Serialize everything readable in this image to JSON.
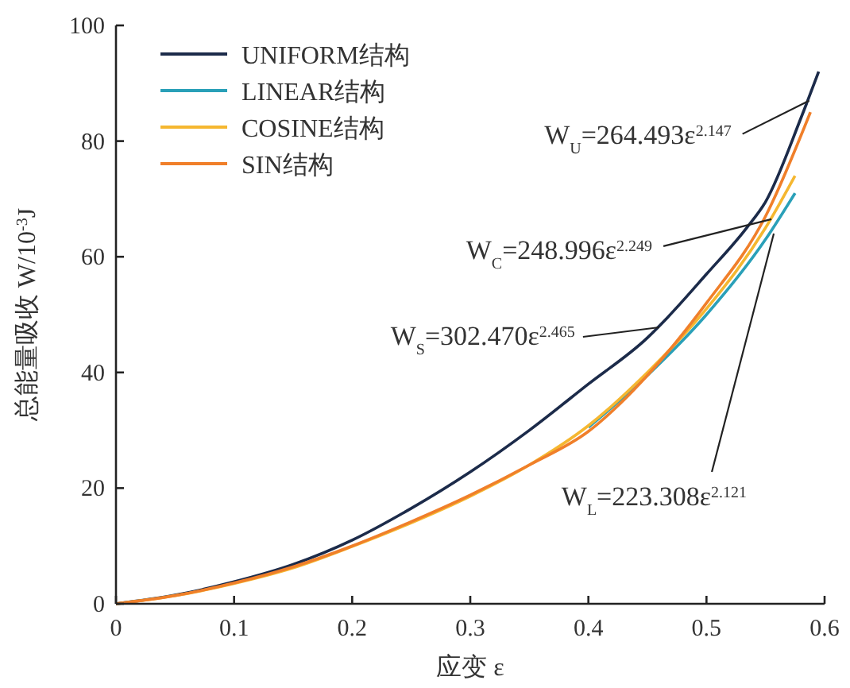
{
  "chart_data": {
    "type": "line",
    "xlabel": "应变 ε",
    "ylabel": "总能量吸收 W/10$^{-3}$J",
    "xlim": [
      0,
      0.6
    ],
    "ylim": [
      0,
      100
    ],
    "xticks": [
      0,
      0.1,
      0.2,
      0.3,
      0.4,
      0.5,
      0.6
    ],
    "yticks": [
      0,
      20,
      40,
      60,
      80,
      100
    ],
    "grid": false,
    "legend": "top left",
    "marker": "none",
    "line_style": "solid",
    "series": [
      {
        "name": "UNIFORM结构",
        "color": "#1c2b4a",
        "x": [
          0,
          0.05,
          0.1,
          0.15,
          0.2,
          0.25,
          0.3,
          0.35,
          0.4,
          0.45,
          0.467,
          0.5,
          0.534,
          0.55,
          0.58,
          0.595
        ],
        "values": [
          0,
          1.5,
          3.8,
          6.8,
          11,
          16.5,
          22.8,
          30,
          38,
          46,
          49.5,
          57,
          65,
          69.5,
          84,
          92
        ]
      },
      {
        "name": "LINEAR结构",
        "color": "#2aa0b8",
        "x": [
          0.4,
          0.45,
          0.5,
          0.55,
          0.575
        ],
        "values": [
          30.5,
          39.5,
          50,
          63,
          71
        ]
      },
      {
        "name": "COSINE结构",
        "color": "#f5b730",
        "x": [
          0,
          0.05,
          0.1,
          0.15,
          0.2,
          0.25,
          0.3,
          0.35,
          0.4,
          0.45,
          0.5,
          0.55,
          0.575
        ],
        "values": [
          0,
          1.4,
          3.5,
          6.2,
          9.9,
          14,
          18.6,
          24,
          30.8,
          40,
          51,
          65,
          74
        ]
      },
      {
        "name": "SIN结构",
        "color": "#f07f2a",
        "x": [
          0,
          0.05,
          0.1,
          0.15,
          0.2,
          0.25,
          0.3,
          0.35,
          0.4,
          0.45,
          0.5,
          0.55,
          0.588
        ],
        "values": [
          0,
          1.4,
          3.6,
          6.4,
          10,
          14.2,
          18.8,
          24,
          29.8,
          39.5,
          52,
          67,
          85
        ]
      }
    ],
    "annotations": [
      {
        "text": "W$_{U}$=264.493ε$^{2.147}$",
        "x": 0.587,
        "y": 87
      },
      {
        "text": "W$_{C}$=248.996ε$^{2.249}$",
        "x": 0.555,
        "y": 66.5
      },
      {
        "text": "W$_{S}$=302.470ε$^{2.465}$",
        "x": 0.46,
        "y": 47.8
      },
      {
        "text": "W$_{L}$=223.308ε$^{2.121}$",
        "x": 0.557,
        "y": 64
      }
    ]
  }
}
